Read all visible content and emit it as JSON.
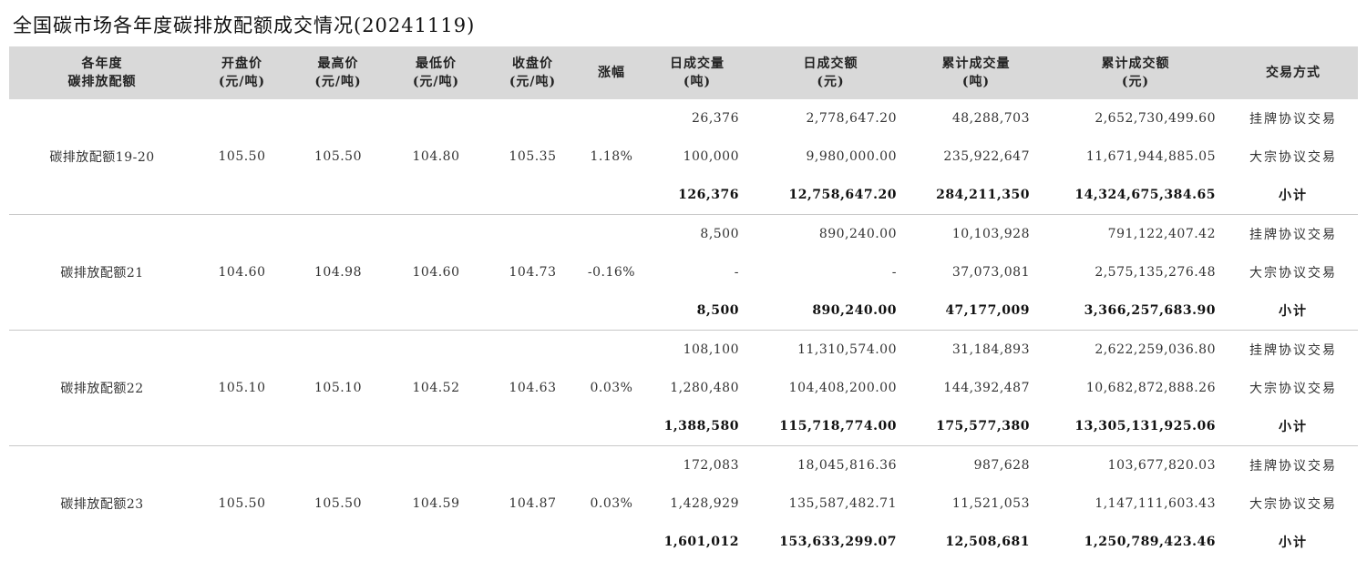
{
  "title": "全国碳市场各年度碳排放配额成交情况(20241119)",
  "headers": [
    {
      "l1": "各年度",
      "l2": "碳排放配额"
    },
    {
      "l1": "开盘价",
      "l2": "(元/吨)"
    },
    {
      "l1": "最高价",
      "l2": "(元/吨)"
    },
    {
      "l1": "最低价",
      "l2": "(元/吨)"
    },
    {
      "l1": "收盘价",
      "l2": "(元/吨)"
    },
    {
      "l1": "涨幅",
      "l2": ""
    },
    {
      "l1": "日成交量",
      "l2": "(吨)"
    },
    {
      "l1": "日成交额",
      "l2": "(元)"
    },
    {
      "l1": "累计成交量",
      "l2": "(吨)"
    },
    {
      "l1": "累计成交额",
      "l2": "(元)"
    },
    {
      "l1": "交易方式",
      "l2": ""
    }
  ],
  "groups": [
    {
      "name": "碳排放配额19-20",
      "open": "105.50",
      "high": "105.50",
      "low": "104.80",
      "close": "105.35",
      "change": "1.18%",
      "rows": [
        {
          "daily_volume": "26,376",
          "daily_amount": "2,778,647.20",
          "cum_volume": "48,288,703",
          "cum_amount": "2,652,730,499.60",
          "mode": "挂牌协议交易"
        },
        {
          "daily_volume": "100,000",
          "daily_amount": "9,980,000.00",
          "cum_volume": "235,922,647",
          "cum_amount": "11,671,944,885.05",
          "mode": "大宗协议交易"
        },
        {
          "daily_volume": "126,376",
          "daily_amount": "12,758,647.20",
          "cum_volume": "284,211,350",
          "cum_amount": "14,324,675,384.65",
          "mode": "小计"
        }
      ]
    },
    {
      "name": "碳排放配额21",
      "open": "104.60",
      "high": "104.98",
      "low": "104.60",
      "close": "104.73",
      "change": "-0.16%",
      "rows": [
        {
          "daily_volume": "8,500",
          "daily_amount": "890,240.00",
          "cum_volume": "10,103,928",
          "cum_amount": "791,122,407.42",
          "mode": "挂牌协议交易"
        },
        {
          "daily_volume": "-",
          "daily_amount": "-",
          "cum_volume": "37,073,081",
          "cum_amount": "2,575,135,276.48",
          "mode": "大宗协议交易"
        },
        {
          "daily_volume": "8,500",
          "daily_amount": "890,240.00",
          "cum_volume": "47,177,009",
          "cum_amount": "3,366,257,683.90",
          "mode": "小计"
        }
      ]
    },
    {
      "name": "碳排放配额22",
      "open": "105.10",
      "high": "105.10",
      "low": "104.52",
      "close": "104.63",
      "change": "0.03%",
      "rows": [
        {
          "daily_volume": "108,100",
          "daily_amount": "11,310,574.00",
          "cum_volume": "31,184,893",
          "cum_amount": "2,622,259,036.80",
          "mode": "挂牌协议交易"
        },
        {
          "daily_volume": "1,280,480",
          "daily_amount": "104,408,200.00",
          "cum_volume": "144,392,487",
          "cum_amount": "10,682,872,888.26",
          "mode": "大宗协议交易"
        },
        {
          "daily_volume": "1,388,580",
          "daily_amount": "115,718,774.00",
          "cum_volume": "175,577,380",
          "cum_amount": "13,305,131,925.06",
          "mode": "小计"
        }
      ]
    },
    {
      "name": "碳排放配额23",
      "open": "105.50",
      "high": "105.50",
      "low": "104.59",
      "close": "104.87",
      "change": "0.03%",
      "rows": [
        {
          "daily_volume": "172,083",
          "daily_amount": "18,045,816.36",
          "cum_volume": "987,628",
          "cum_amount": "103,677,820.03",
          "mode": "挂牌协议交易"
        },
        {
          "daily_volume": "1,428,929",
          "daily_amount": "135,587,482.71",
          "cum_volume": "11,521,053",
          "cum_amount": "1,147,111,603.43",
          "mode": "大宗协议交易"
        },
        {
          "daily_volume": "1,601,012",
          "daily_amount": "153,633,299.07",
          "cum_volume": "12,508,681",
          "cum_amount": "1,250,789,423.46",
          "mode": "小计"
        }
      ]
    }
  ]
}
